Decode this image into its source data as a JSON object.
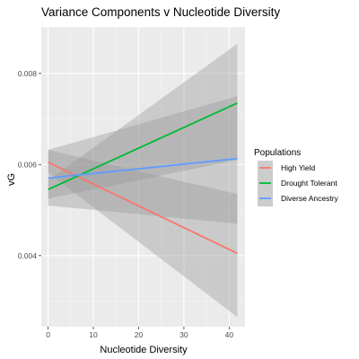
{
  "chart_data": {
    "type": "line",
    "title": "Variance Components v Nucleotide Diversity",
    "xlabel": "Nucleotide Diversity",
    "ylabel": "vG",
    "xlim": [
      -1.5,
      43.5
    ],
    "ylim": [
      0.00244,
      0.00902
    ],
    "x_ticks": [
      0,
      10,
      20,
      30,
      40
    ],
    "x_tick_labels": [
      "0",
      "10",
      "20",
      "30",
      "40"
    ],
    "y_ticks": [
      0.004,
      0.006,
      0.008
    ],
    "y_tick_labels": [
      "0.004",
      "0.006",
      "0.008"
    ],
    "grid": true,
    "legend": {
      "title": "Populations",
      "position": "right"
    },
    "series": [
      {
        "name": "High Yield",
        "color": "#F8766D",
        "x": [
          0,
          41.8
        ],
        "values": [
          0.00605,
          0.00405
        ],
        "ci_lower": [
          0.00582,
          0.00265
        ],
        "ci_upper": [
          0.00632,
          0.00535
        ]
      },
      {
        "name": "Drought Tolerant",
        "color": "#00BA38",
        "x": [
          0,
          41.8
        ],
        "values": [
          0.00545,
          0.00735
        ],
        "ci_lower": [
          0.00525,
          0.0061
        ],
        "ci_upper": [
          0.00565,
          0.00865
        ]
      },
      {
        "name": "Diverse Ancestry",
        "color": "#619CFF",
        "x": [
          0,
          41.8
        ],
        "values": [
          0.0057,
          0.00613
        ],
        "ci_lower": [
          0.0051,
          0.0047
        ],
        "ci_upper": [
          0.00632,
          0.0075
        ]
      }
    ]
  }
}
